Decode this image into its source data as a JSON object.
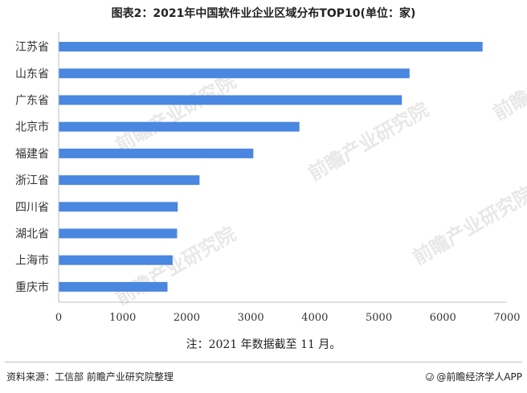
{
  "title": "图表2：2021年中国软件业企业区域分布TOP10(单位：家)",
  "note": "注：2021 年数据截至 11 月。",
  "source": "资料来源：工信部 前瞻产业研究院整理",
  "brand": "@前瞻经济学人APP",
  "watermark": "前瞻产业研究院",
  "colors": {
    "bar": "#4a87e0",
    "axis": "#bfbfbf",
    "text": "#333333"
  },
  "chart_data": {
    "type": "bar",
    "orientation": "horizontal",
    "categories": [
      "江苏省",
      "山东省",
      "广东省",
      "北京市",
      "福建省",
      "浙江省",
      "四川省",
      "湖北省",
      "上海市",
      "重庆市"
    ],
    "values": [
      6620,
      5480,
      5360,
      3760,
      3040,
      2200,
      1860,
      1850,
      1780,
      1700
    ],
    "xlim": [
      0,
      7000
    ],
    "xticks": [
      0,
      1000,
      2000,
      3000,
      4000,
      5000,
      6000,
      7000
    ],
    "xlabel": "",
    "ylabel": "",
    "grid": false,
    "legend": "none"
  }
}
